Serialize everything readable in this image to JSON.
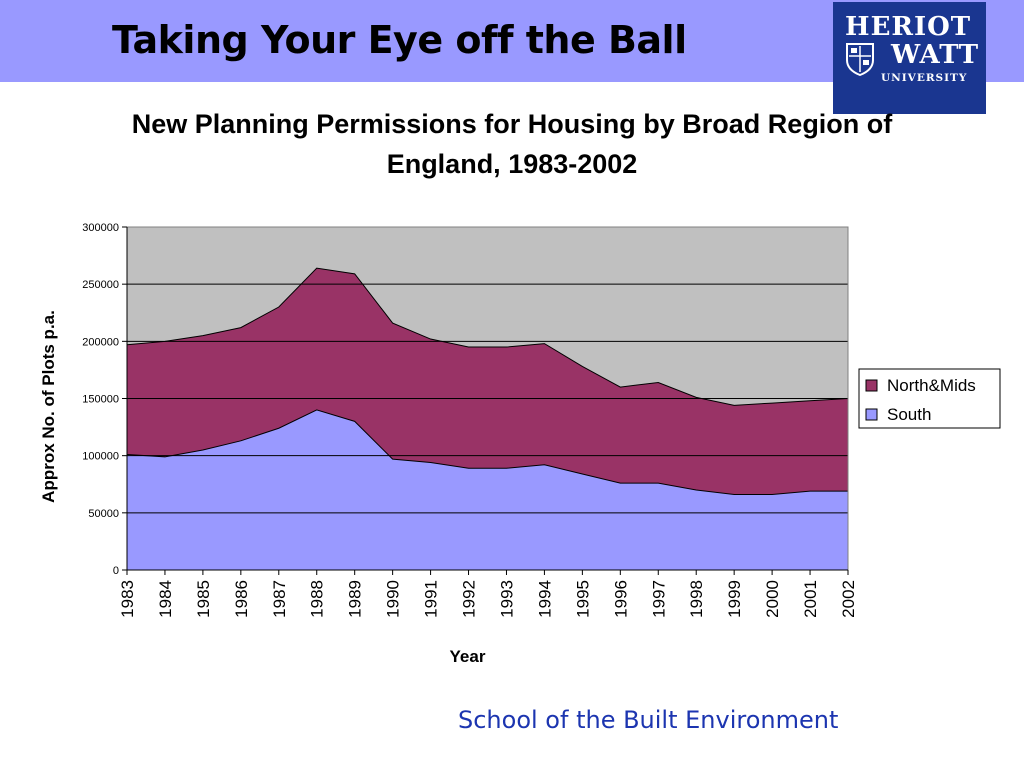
{
  "slide": {
    "title": "Taking Your Eye off the Ball",
    "footer": "School of the Built Environment"
  },
  "logo": {
    "line1": "HERIOT",
    "line2": "WATT",
    "line3": "UNIVERSITY",
    "background": "#1a3690"
  },
  "colors": {
    "header_band": "#9999ff",
    "plot_background": "#c0c0c0",
    "north_mids": "#993366",
    "south": "#9999ff",
    "footer_text": "#1c35b0"
  },
  "chart_data": {
    "type": "area",
    "stacked": true,
    "title": "New Planning Permissions for Housing by Broad Region of England, 1983-2002",
    "xlabel": "Year",
    "ylabel": "Approx No. of Plots p.a.",
    "ylim": [
      0,
      300000
    ],
    "yticks": [
      "300000",
      "250000",
      "200000",
      "150000",
      "100000",
      "50000",
      "0"
    ],
    "categories": [
      "1983",
      "1984",
      "1985",
      "1986",
      "1987",
      "1988",
      "1989",
      "1990",
      "1991",
      "1992",
      "1993",
      "1994",
      "1995",
      "1996",
      "1997",
      "1998",
      "1999",
      "2000",
      "2001",
      "2002"
    ],
    "series": [
      {
        "name": "South",
        "color": "#9999ff",
        "values": [
          101000,
          99000,
          105000,
          113000,
          124000,
          140000,
          130000,
          97000,
          94000,
          89000,
          89000,
          92000,
          84000,
          76000,
          76000,
          70000,
          66000,
          66000,
          69000,
          69000
        ]
      },
      {
        "name": "North&Mids",
        "color": "#993366",
        "values": [
          96000,
          101000,
          100000,
          99000,
          106000,
          124000,
          129000,
          119000,
          108000,
          106000,
          106000,
          106000,
          94000,
          84000,
          88000,
          81000,
          78000,
          80000,
          79000,
          81000
        ]
      }
    ],
    "legend_order": [
      "North&Mids",
      "South"
    ],
    "legend_position": "right",
    "grid": true
  }
}
